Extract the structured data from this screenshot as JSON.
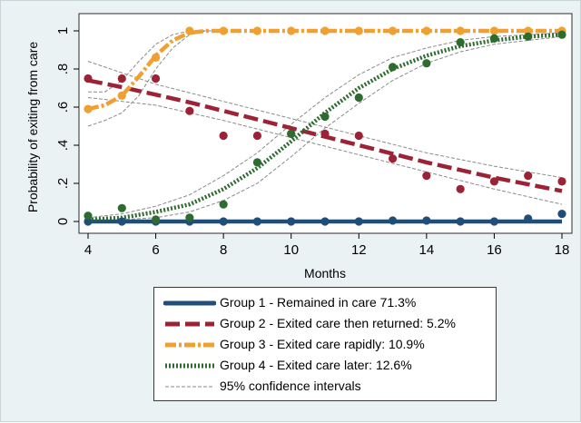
{
  "chart_data": {
    "type": "line",
    "title": "",
    "xlabel": "Months",
    "ylabel": "Probability of exiting from care",
    "xlim": [
      4,
      18
    ],
    "ylim": [
      0,
      1
    ],
    "x_ticks": [
      4,
      6,
      8,
      10,
      12,
      14,
      16,
      18
    ],
    "y_ticks": [
      0,
      0.2,
      0.4,
      0.6,
      0.8,
      1
    ],
    "y_tick_labels": [
      "0",
      ".2",
      ".4",
      ".6",
      ".8",
      "1"
    ],
    "grid": false,
    "legend_position": "bottom",
    "series": [
      {
        "name": "Group 1 - Remained in care 71.3%",
        "color": "#1f4e79",
        "style": "solid",
        "observed": {
          "x": [
            4,
            5,
            6,
            7,
            8,
            9,
            10,
            11,
            12,
            13,
            14,
            15,
            16,
            17,
            18
          ],
          "y": [
            0.0,
            0.0,
            0.0,
            0.0,
            0.0,
            0.0,
            0.0,
            0.0,
            0.0,
            0.005,
            0.005,
            0.0,
            0.0,
            0.015,
            0.04
          ]
        },
        "fitted": {
          "x": [
            4,
            6,
            8,
            10,
            12,
            14,
            16,
            18
          ],
          "y": [
            0.0,
            0.0,
            0.0,
            0.0,
            0.0,
            0.0,
            0.0,
            0.0
          ]
        }
      },
      {
        "name": "Group 2 - Exited care then returned: 5.2%",
        "color": "#9b2335",
        "style": "longdash",
        "observed": {
          "x": [
            4,
            5,
            6,
            7,
            8,
            9,
            10,
            11,
            12,
            13,
            14,
            15,
            16,
            17,
            18
          ],
          "y": [
            0.75,
            0.75,
            0.75,
            0.58,
            0.45,
            0.45,
            0.46,
            0.46,
            0.45,
            0.33,
            0.24,
            0.17,
            0.21,
            0.24,
            0.21
          ]
        },
        "fitted": {
          "x": [
            4,
            5,
            6,
            7,
            8,
            9,
            10,
            11,
            12,
            13,
            14,
            15,
            16,
            17,
            18
          ],
          "y": [
            0.74,
            0.705,
            0.665,
            0.625,
            0.58,
            0.535,
            0.49,
            0.445,
            0.4,
            0.355,
            0.31,
            0.27,
            0.23,
            0.195,
            0.16
          ]
        }
      },
      {
        "name": "Group 3 - Exited care rapidly: 10.9%",
        "color": "#f0a030",
        "style": "dashdot",
        "observed": {
          "x": [
            4,
            5,
            6,
            7,
            8,
            9,
            10,
            11,
            12,
            13,
            14,
            15,
            16,
            17,
            18
          ],
          "y": [
            0.59,
            0.66,
            0.86,
            1.0,
            1.0,
            1.0,
            1.0,
            1.0,
            1.0,
            1.0,
            1.0,
            1.0,
            1.0,
            1.0,
            1.0
          ]
        },
        "fitted": {
          "x": [
            4,
            4.5,
            5,
            5.5,
            6,
            6.5,
            7,
            7.5,
            8,
            10,
            12,
            14,
            16,
            18
          ],
          "y": [
            0.59,
            0.61,
            0.66,
            0.76,
            0.87,
            0.95,
            0.99,
            1.0,
            1.0,
            1.0,
            1.0,
            1.0,
            1.0,
            1.0
          ]
        }
      },
      {
        "name": "Group 4 - Exited care later: 12.6%",
        "color": "#2e6b2e",
        "style": "dotted",
        "observed": {
          "x": [
            4,
            5,
            6,
            7,
            8,
            9,
            10,
            11,
            12,
            13,
            14,
            15,
            16,
            17,
            18
          ],
          "y": [
            0.03,
            0.07,
            0.01,
            0.02,
            0.09,
            0.31,
            0.46,
            0.55,
            0.65,
            0.81,
            0.83,
            0.94,
            0.96,
            0.97,
            0.98
          ]
        },
        "fitted": {
          "x": [
            4,
            5,
            6,
            7,
            8,
            9,
            10,
            11,
            12,
            13,
            14,
            15,
            16,
            17,
            18
          ],
          "y": [
            0.01,
            0.02,
            0.05,
            0.09,
            0.17,
            0.28,
            0.42,
            0.57,
            0.7,
            0.8,
            0.87,
            0.92,
            0.95,
            0.97,
            0.98
          ]
        }
      },
      {
        "name": "95% confidence intervals",
        "color": "#8a8a8a",
        "style": "thin-dash"
      }
    ],
    "confidence_intervals": [
      {
        "group": 2,
        "x": [
          4,
          6,
          8,
          10,
          12,
          14,
          16,
          18
        ],
        "lower": [
          0.65,
          0.61,
          0.53,
          0.44,
          0.35,
          0.26,
          0.17,
          0.09
        ],
        "upper": [
          0.84,
          0.72,
          0.63,
          0.54,
          0.45,
          0.36,
          0.29,
          0.23
        ]
      },
      {
        "group": 3,
        "x": [
          4,
          4.5,
          5,
          5.5,
          6,
          6.5,
          7,
          7.5,
          8
        ],
        "lower": [
          0.5,
          0.53,
          0.57,
          0.66,
          0.8,
          0.91,
          0.98,
          1.0,
          1.0
        ],
        "upper": [
          0.68,
          0.68,
          0.74,
          0.84,
          0.93,
          0.98,
          1.0,
          1.0,
          1.0
        ]
      },
      {
        "group": 4,
        "x": [
          4,
          5,
          6,
          7,
          8,
          9,
          10,
          11,
          12,
          13,
          14,
          15,
          16,
          17,
          18
        ],
        "lower": [
          0.0,
          0.01,
          0.02,
          0.05,
          0.11,
          0.2,
          0.34,
          0.49,
          0.62,
          0.74,
          0.83,
          0.89,
          0.93,
          0.95,
          0.97
        ],
        "upper": [
          0.02,
          0.04,
          0.08,
          0.14,
          0.24,
          0.36,
          0.51,
          0.65,
          0.77,
          0.86,
          0.91,
          0.95,
          0.97,
          0.98,
          0.99
        ]
      }
    ]
  }
}
